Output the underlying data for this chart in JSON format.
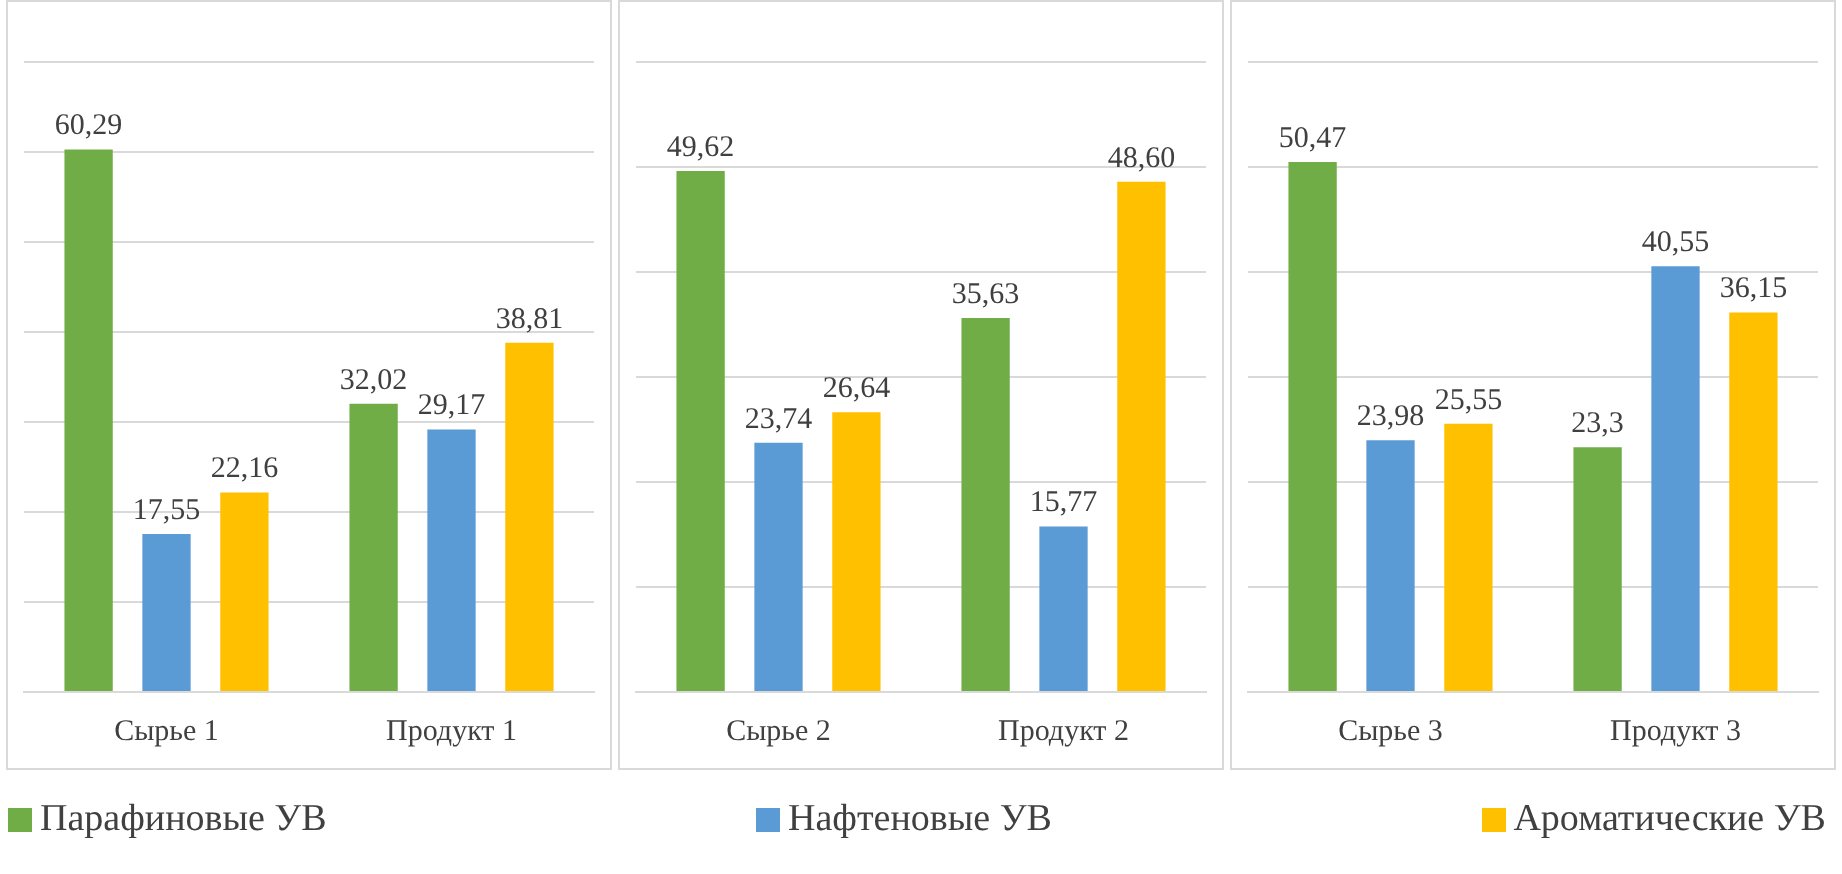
{
  "chart_data": [
    {
      "type": "bar",
      "categories": [
        "Сырье 1",
        "Продукт 1"
      ],
      "ylim": [
        0,
        70
      ],
      "yticks": [
        {
          "value": 0,
          "label": null
        },
        {
          "value": 10,
          "label": null
        },
        {
          "value": 20,
          "label": null
        },
        {
          "value": 30,
          "label": null
        },
        {
          "value": 40,
          "label": null
        },
        {
          "value": 50,
          "label": null
        },
        {
          "value": 60,
          "label": null
        },
        {
          "value": 70,
          "label": null
        }
      ],
      "grid": "y",
      "tick_labels": "x",
      "data_labels": true,
      "legend": "bottom",
      "series": [
        {
          "name": "Парафиновые УВ",
          "color": "#70ad47",
          "values": [
            60.29,
            32.02
          ],
          "value_labels": [
            "60,29",
            "32,02"
          ]
        },
        {
          "name": "Нафтеновые УВ",
          "color": "#5b9bd5",
          "values": [
            17.55,
            29.17
          ],
          "value_labels": [
            "17,55",
            "29,17"
          ]
        },
        {
          "name": "Ароматические УВ",
          "color": "#ffc000",
          "values": [
            22.16,
            38.81
          ],
          "value_labels": [
            "22,16",
            "38,81"
          ]
        }
      ]
    },
    {
      "type": "bar",
      "categories": [
        "Сырье 2",
        "Продукт 2"
      ],
      "ylim": [
        0,
        60
      ],
      "yticks": [
        {
          "value": 0,
          "label": null
        },
        {
          "value": 10,
          "label": null
        },
        {
          "value": 20,
          "label": null
        },
        {
          "value": 30,
          "label": null
        },
        {
          "value": 40,
          "label": null
        },
        {
          "value": 50,
          "label": null
        },
        {
          "value": 60,
          "label": null
        }
      ],
      "grid": "y",
      "tick_labels": "x",
      "data_labels": true,
      "series": [
        {
          "color": "#70ad47",
          "values": [
            49.62,
            35.63
          ],
          "value_labels": [
            "49,62",
            "35,63"
          ]
        },
        {
          "color": "#5b9bd5",
          "values": [
            23.74,
            15.77
          ],
          "value_labels": [
            "23,74",
            "15,77"
          ]
        },
        {
          "color": "#ffc000",
          "values": [
            26.64,
            48.6
          ],
          "value_labels": [
            "26,64",
            "48,60"
          ]
        }
      ]
    },
    {
      "type": "bar",
      "categories": [
        "Сырье 3",
        "Продукт 3"
      ],
      "ylim": [
        0,
        60
      ],
      "yticks": [
        {
          "value": 0,
          "label": null
        },
        {
          "value": 10,
          "label": null
        },
        {
          "value": 20,
          "label": null
        },
        {
          "value": 30,
          "label": null
        },
        {
          "value": 40,
          "label": null
        },
        {
          "value": 50,
          "label": null
        },
        {
          "value": 60,
          "label": null
        }
      ],
      "grid": "y",
      "tick_labels": "x",
      "data_labels": true,
      "series": [
        {
          "color": "#70ad47",
          "values": [
            50.47,
            23.3
          ],
          "value_labels": [
            "50,47",
            "23,3"
          ]
        },
        {
          "color": "#5b9bd5",
          "values": [
            23.98,
            40.55
          ],
          "value_labels": [
            "23,98",
            "40,55"
          ]
        },
        {
          "color": "#ffc000",
          "values": [
            25.55,
            36.15
          ],
          "value_labels": [
            "25,55",
            "36,15"
          ]
        }
      ]
    }
  ]
}
